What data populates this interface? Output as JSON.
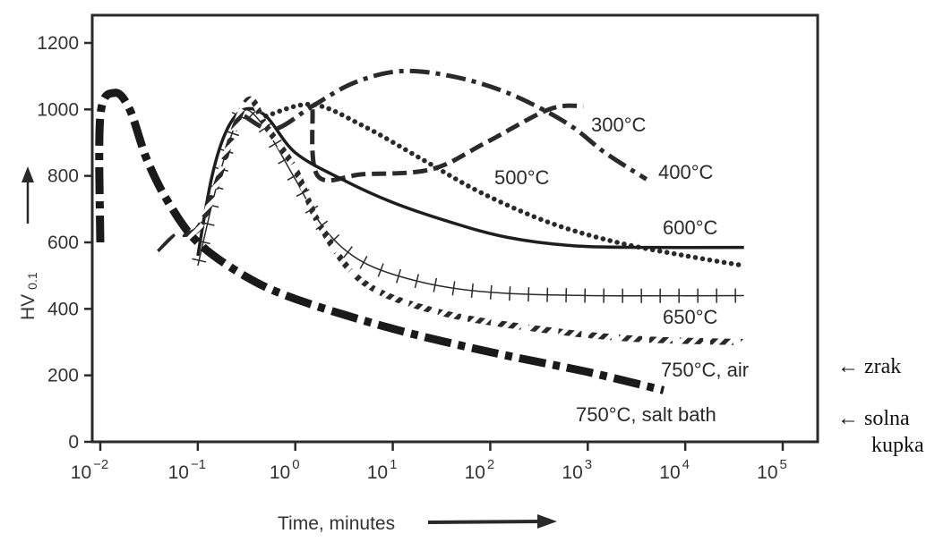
{
  "chart_data": {
    "type": "line",
    "xscale": "log",
    "xlim": [
      0.01,
      100000
    ],
    "ylim": [
      0,
      1250
    ],
    "xlabel": "Time, minutes",
    "ylabel": "HV",
    "ylabel_subscript": "0.1",
    "x_ticks": [
      {
        "value": 0.01,
        "base": "10",
        "exp": "−2"
      },
      {
        "value": 0.1,
        "base": "10",
        "exp": "−1"
      },
      {
        "value": 1,
        "base": "10",
        "exp": "0"
      },
      {
        "value": 10,
        "base": "10",
        "exp": "1"
      },
      {
        "value": 100,
        "base": "10",
        "exp": "2"
      },
      {
        "value": 1000,
        "base": "10",
        "exp": "3"
      },
      {
        "value": 10000,
        "base": "10",
        "exp": "4"
      },
      {
        "value": 100000,
        "base": "10",
        "exp": "5"
      }
    ],
    "y_ticks": [
      0,
      200,
      400,
      600,
      800,
      1000,
      1200
    ],
    "grid": false,
    "series": [
      {
        "name": "300°C",
        "color": "#2a2a2a",
        "style": "dashed",
        "points": [
          [
            1.5,
            1000
          ],
          [
            1.7,
            800
          ],
          [
            5,
            805
          ],
          [
            25,
            820
          ],
          [
            90,
            900
          ],
          [
            400,
            1000
          ],
          [
            900,
            1010
          ]
        ]
      },
      {
        "name": "400°C",
        "color": "#2a2a2a",
        "style": "dashdot",
        "points": [
          [
            0.3,
            980
          ],
          [
            0.6,
            940
          ],
          [
            1.5,
            1010
          ],
          [
            4,
            1080
          ],
          [
            12,
            1115
          ],
          [
            40,
            1100
          ],
          [
            150,
            1050
          ],
          [
            600,
            960
          ],
          [
            1500,
            870
          ],
          [
            4000,
            790
          ]
        ]
      },
      {
        "name": "500°C",
        "color": "#2a2a2a",
        "style": "dotted",
        "points": [
          [
            0.5,
            980
          ],
          [
            1.5,
            1015
          ],
          [
            5,
            950
          ],
          [
            20,
            850
          ],
          [
            80,
            750
          ],
          [
            400,
            660
          ],
          [
            2000,
            600
          ],
          [
            10000,
            560
          ],
          [
            40000,
            530
          ]
        ]
      },
      {
        "name": "600°C",
        "color": "#1e1e1e",
        "style": "solid",
        "points": [
          [
            0.1,
            560
          ],
          [
            0.14,
            800
          ],
          [
            0.2,
            940
          ],
          [
            0.3,
            1000
          ],
          [
            0.5,
            980
          ],
          [
            1,
            870
          ],
          [
            3,
            790
          ],
          [
            10,
            720
          ],
          [
            40,
            660
          ],
          [
            150,
            615
          ],
          [
            700,
            590
          ],
          [
            4000,
            585
          ],
          [
            40000,
            585
          ]
        ]
      },
      {
        "name": "650°C",
        "color": "#2a2a2a",
        "style": "crosses",
        "points": [
          [
            0.1,
            530
          ],
          [
            0.15,
            750
          ],
          [
            0.22,
            920
          ],
          [
            0.3,
            1000
          ],
          [
            0.5,
            940
          ],
          [
            1,
            790
          ],
          [
            2,
            640
          ],
          [
            5,
            540
          ],
          [
            20,
            480
          ],
          [
            100,
            450
          ],
          [
            1000,
            440
          ],
          [
            40000,
            440
          ]
        ]
      },
      {
        "name": "750°C, air",
        "color": "#2a2a2a",
        "style": "hatched",
        "points": [
          [
            0.04,
            570
          ],
          [
            0.06,
            620
          ],
          [
            0.1,
            640
          ],
          [
            0.15,
            760
          ],
          [
            0.25,
            960
          ],
          [
            0.35,
            1030
          ],
          [
            0.5,
            950
          ],
          [
            1,
            820
          ],
          [
            1.8,
            650
          ],
          [
            5,
            480
          ],
          [
            30,
            390
          ],
          [
            300,
            340
          ],
          [
            3000,
            310
          ],
          [
            40000,
            300
          ]
        ]
      },
      {
        "name": "750°C, salt bath",
        "color": "#1a1a1a",
        "style": "thick-dashdot",
        "points": [
          [
            0.01,
            600
          ],
          [
            0.01,
            980
          ],
          [
            0.014,
            1050
          ],
          [
            0.02,
            1000
          ],
          [
            0.03,
            850
          ],
          [
            0.05,
            720
          ],
          [
            0.1,
            600
          ],
          [
            0.3,
            500
          ],
          [
            1,
            430
          ],
          [
            10,
            340
          ],
          [
            100,
            270
          ],
          [
            1000,
            210
          ],
          [
            6000,
            155
          ]
        ]
      }
    ],
    "labels": [
      {
        "text": "300°C",
        "series": "300°C"
      },
      {
        "text": "400°C",
        "series": "400°C"
      },
      {
        "text": "500°C",
        "series": "500°C"
      },
      {
        "text": "600°C",
        "series": "600°C"
      },
      {
        "text": "650°C",
        "series": "650°C"
      },
      {
        "text": "750°C, air",
        "series": "750°C, air"
      },
      {
        "text": "750°C, salt bath",
        "series": "750°C, salt bath"
      }
    ]
  },
  "notes": [
    {
      "arrow": "←",
      "lines": [
        "zrak"
      ]
    },
    {
      "arrow": "←",
      "lines": [
        "solna",
        "kupka"
      ]
    }
  ]
}
